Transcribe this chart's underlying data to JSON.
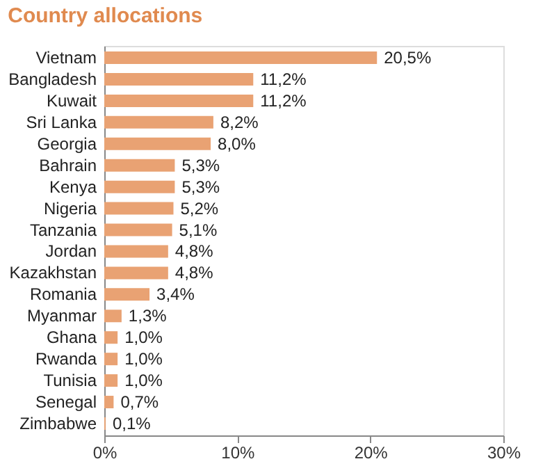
{
  "chart_data": {
    "type": "bar",
    "orientation": "horizontal",
    "title": "Country allocations",
    "categories": [
      "Vietnam",
      "Bangladesh",
      "Kuwait",
      "Sri Lanka",
      "Georgia",
      "Bahrain",
      "Kenya",
      "Nigeria",
      "Tanzania",
      "Jordan",
      "Kazakhstan",
      "Romania",
      "Myanmar",
      "Ghana",
      "Rwanda",
      "Tunisia",
      "Senegal",
      "Zimbabwe"
    ],
    "values": [
      20.5,
      11.2,
      11.2,
      8.2,
      8.0,
      5.3,
      5.3,
      5.2,
      5.1,
      4.8,
      4.8,
      3.4,
      1.3,
      1.0,
      1.0,
      1.0,
      0.7,
      0.1
    ],
    "value_labels": [
      "20,5%",
      "11,2%",
      "11,2%",
      "8,2%",
      "8,0%",
      "5,3%",
      "5,3%",
      "5,2%",
      "5,1%",
      "4,8%",
      "4,8%",
      "3,4%",
      "1,3%",
      "1,0%",
      "1,0%",
      "1,0%",
      "0,7%",
      "0,1%"
    ],
    "color": "#e9a273",
    "xlim": [
      0,
      30
    ],
    "xticks": [
      {
        "value": 0,
        "label": "0%"
      },
      {
        "value": 10,
        "label": "10%"
      },
      {
        "value": 20,
        "label": "20%"
      },
      {
        "value": 30,
        "label": "30%"
      }
    ],
    "grid": false
  }
}
